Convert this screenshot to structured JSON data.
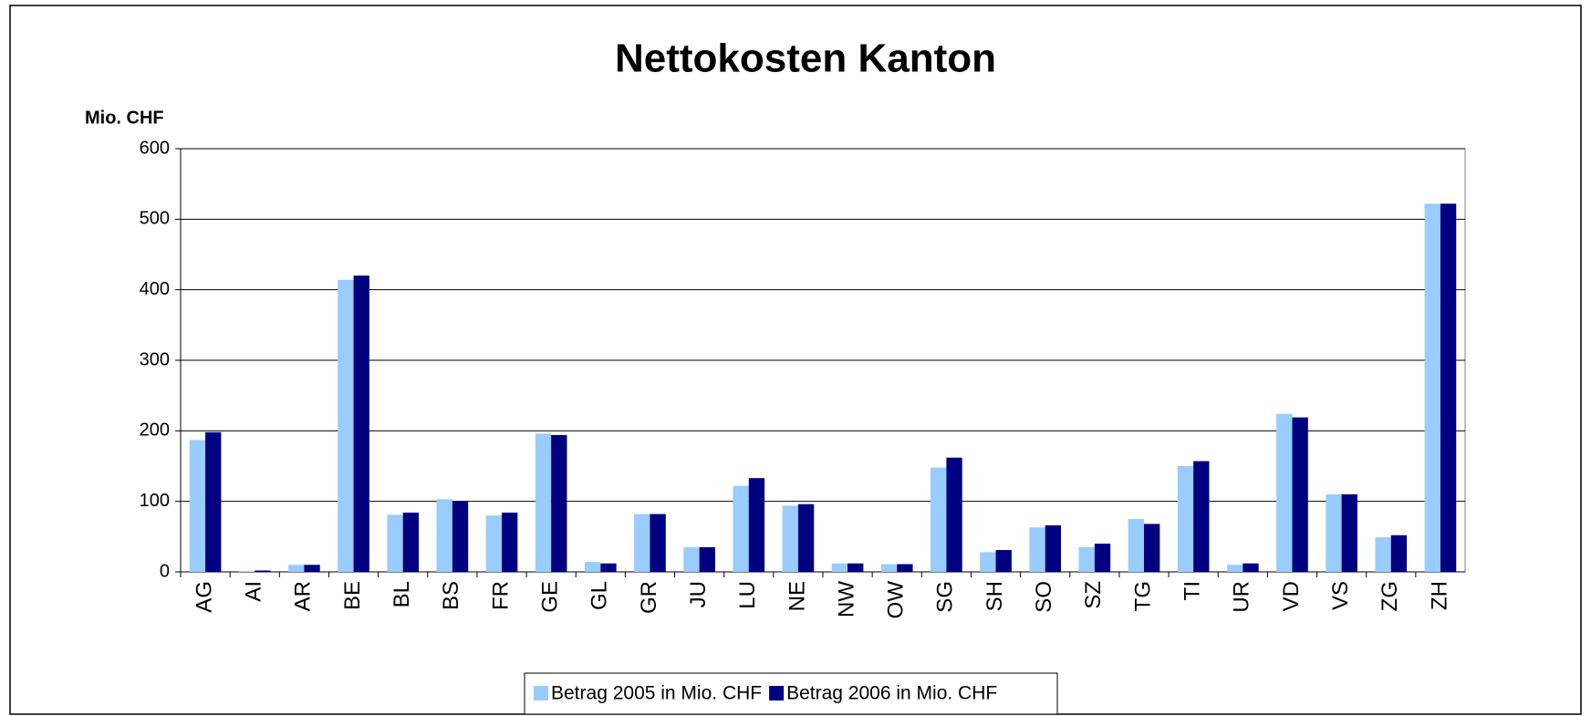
{
  "chart_data": {
    "type": "bar",
    "title": "Nettokosten Kanton",
    "y_label": "Mio. CHF",
    "categories": [
      "AG",
      "AI",
      "AR",
      "BE",
      "BL",
      "BS",
      "FR",
      "GE",
      "GL",
      "GR",
      "JU",
      "LU",
      "NE",
      "NW",
      "OW",
      "SG",
      "SH",
      "SO",
      "SZ",
      "TG",
      "TI",
      "UR",
      "VD",
      "VS",
      "ZG",
      "ZH"
    ],
    "series": [
      {
        "name": "Betrag 2005 in Mio. CHF",
        "color": "#99ccff",
        "values": [
          187,
          1,
          10,
          414,
          81,
          103,
          80,
          196,
          14,
          82,
          35,
          122,
          94,
          12,
          11,
          148,
          28,
          63,
          35,
          75,
          150,
          10,
          224,
          110,
          49,
          522
        ]
      },
      {
        "name": "Betrag 2006 in Mio. CHF",
        "color": "#000080",
        "values": [
          198,
          2,
          10,
          420,
          84,
          100,
          84,
          194,
          12,
          82,
          35,
          133,
          96,
          12,
          11,
          162,
          31,
          66,
          40,
          68,
          157,
          12,
          219,
          110,
          52,
          522
        ]
      }
    ],
    "ylim": [
      0,
      600
    ],
    "yticks": [
      0,
      100,
      200,
      300,
      400,
      500,
      600
    ],
    "grid": true,
    "legend": "bottom"
  }
}
